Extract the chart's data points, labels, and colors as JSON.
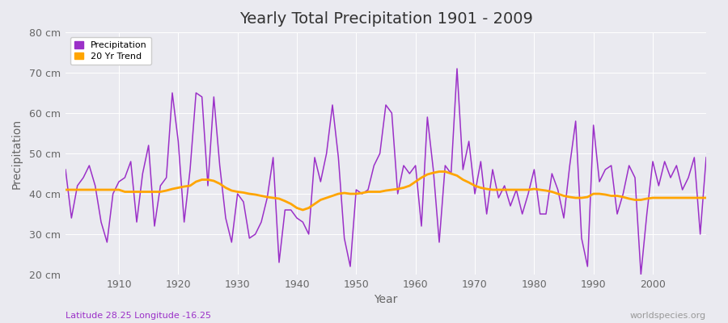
{
  "title": "Yearly Total Precipitation 1901 - 2009",
  "xlabel": "Year",
  "ylabel": "Precipitation",
  "bottom_left_label": "Latitude 28.25 Longitude -16.25",
  "bottom_right_label": "worldspecies.org",
  "xlim": [
    1901,
    2009
  ],
  "ylim": [
    20,
    80
  ],
  "yticks": [
    20,
    30,
    40,
    50,
    60,
    70,
    80
  ],
  "ytick_labels": [
    "20 cm",
    "30 cm",
    "40 cm",
    "50 cm",
    "60 cm",
    "70 cm",
    "80 cm"
  ],
  "xticks": [
    1910,
    1920,
    1930,
    1940,
    1950,
    1960,
    1970,
    1980,
    1990,
    2000
  ],
  "precip_color": "#9B30C8",
  "trend_color": "#FFA500",
  "legend_precip_label": "Precipitation",
  "legend_trend_label": "20 Yr Trend",
  "background_color": "#EAEAF0",
  "plot_bg_color": "#E8E8EE",
  "grid_color": "#FFFFFF",
  "years": [
    1901,
    1902,
    1903,
    1904,
    1905,
    1906,
    1907,
    1908,
    1909,
    1910,
    1911,
    1912,
    1913,
    1914,
    1915,
    1916,
    1917,
    1918,
    1919,
    1920,
    1921,
    1922,
    1923,
    1924,
    1925,
    1926,
    1927,
    1928,
    1929,
    1930,
    1931,
    1932,
    1933,
    1934,
    1935,
    1936,
    1937,
    1938,
    1939,
    1940,
    1941,
    1942,
    1943,
    1944,
    1945,
    1946,
    1947,
    1948,
    1949,
    1950,
    1951,
    1952,
    1953,
    1954,
    1955,
    1956,
    1957,
    1958,
    1959,
    1960,
    1961,
    1962,
    1963,
    1964,
    1965,
    1966,
    1967,
    1968,
    1969,
    1970,
    1971,
    1972,
    1973,
    1974,
    1975,
    1976,
    1977,
    1978,
    1979,
    1980,
    1981,
    1982,
    1983,
    1984,
    1985,
    1986,
    1987,
    1988,
    1989,
    1990,
    1991,
    1992,
    1993,
    1994,
    1995,
    1996,
    1997,
    1998,
    1999,
    2000,
    2001,
    2002,
    2003,
    2004,
    2005,
    2006,
    2007,
    2008,
    2009
  ],
  "precip": [
    46,
    34,
    42,
    44,
    47,
    42,
    33,
    28,
    40,
    43,
    44,
    48,
    33,
    45,
    52,
    32,
    42,
    44,
    65,
    53,
    33,
    46,
    65,
    64,
    42,
    64,
    47,
    34,
    28,
    40,
    38,
    29,
    30,
    33,
    39,
    49,
    23,
    36,
    36,
    34,
    33,
    30,
    49,
    43,
    50,
    62,
    49,
    29,
    22,
    41,
    40,
    41,
    47,
    50,
    62,
    60,
    40,
    47,
    45,
    47,
    32,
    59,
    46,
    28,
    47,
    45,
    71,
    46,
    53,
    40,
    48,
    35,
    46,
    39,
    42,
    37,
    41,
    35,
    40,
    46,
    35,
    35,
    45,
    41,
    34,
    47,
    58,
    29,
    22,
    57,
    43,
    46,
    47,
    35,
    40,
    47,
    44,
    20,
    35,
    48,
    42,
    48,
    44,
    47,
    41,
    44,
    49,
    30,
    49
  ],
  "trend": [
    41.0,
    41.0,
    41.0,
    41.0,
    41.0,
    41.0,
    41.0,
    41.0,
    41.0,
    41.0,
    40.5,
    40.5,
    40.5,
    40.5,
    40.5,
    40.5,
    40.5,
    40.8,
    41.2,
    41.5,
    41.8,
    42.0,
    43.0,
    43.5,
    43.5,
    43.2,
    42.5,
    41.5,
    40.8,
    40.5,
    40.3,
    40.0,
    39.8,
    39.5,
    39.2,
    39.0,
    38.8,
    38.2,
    37.5,
    36.5,
    36.0,
    36.5,
    37.5,
    38.5,
    39.0,
    39.5,
    40.0,
    40.2,
    40.0,
    40.0,
    40.2,
    40.5,
    40.5,
    40.5,
    40.8,
    41.0,
    41.2,
    41.5,
    42.0,
    43.0,
    44.0,
    44.8,
    45.2,
    45.5,
    45.5,
    45.0,
    44.5,
    43.5,
    42.8,
    42.0,
    41.5,
    41.2,
    41.0,
    41.0,
    41.0,
    41.0,
    41.0,
    41.0,
    41.0,
    41.2,
    41.0,
    40.8,
    40.5,
    40.0,
    39.5,
    39.2,
    39.0,
    39.0,
    39.2,
    40.0,
    40.0,
    39.8,
    39.5,
    39.5,
    39.2,
    38.8,
    38.5,
    38.5,
    38.8,
    39.0,
    39.0,
    39.0,
    39.0,
    39.0,
    39.0,
    39.0,
    39.0,
    39.0,
    39.0
  ]
}
